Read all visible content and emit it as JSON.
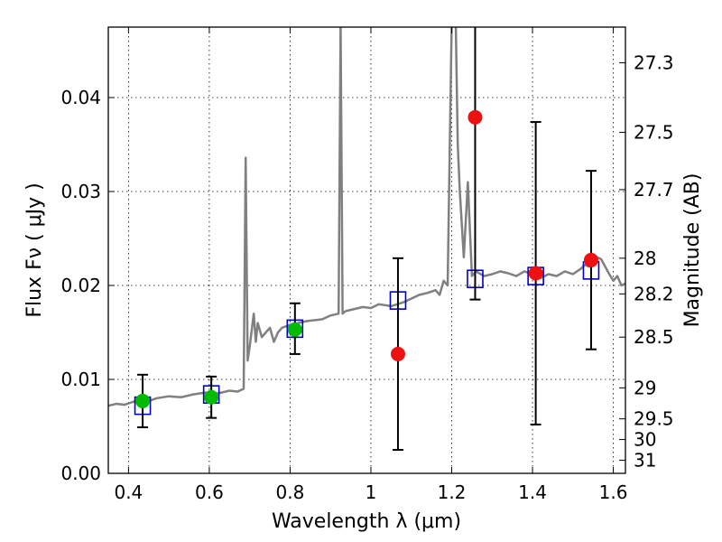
{
  "chart_data": {
    "type": "scatter",
    "xlabel": "Wavelength  λ (μm)",
    "ylabel": "Flux  Fν ( μJy )",
    "ylabel_right": "Magnitude (AB)",
    "xlim": [
      0.35,
      1.63
    ],
    "ylim": [
      0.0,
      0.0475
    ],
    "x_ticks": [
      0.4,
      0.6,
      0.8,
      1.0,
      1.2,
      1.4,
      1.6
    ],
    "x_tick_labels": [
      "0.4",
      "0.6",
      "0.8",
      "1",
      "1.2",
      "1.4",
      "1.6"
    ],
    "y_ticks": [
      0.0,
      0.01,
      0.02,
      0.03,
      0.04
    ],
    "y_tick_labels": [
      "0.00",
      "0.01",
      "0.02",
      "0.03",
      "0.04"
    ],
    "right_ticks": [
      {
        "label": "27.3",
        "flux": 0.0437
      },
      {
        "label": "27.5",
        "flux": 0.0363
      },
      {
        "label": "27.7",
        "flux": 0.0302
      },
      {
        "label": "28",
        "flux": 0.0229
      },
      {
        "label": "28.2",
        "flux": 0.0191
      },
      {
        "label": "28.5",
        "flux": 0.0145
      },
      {
        "label": "29",
        "flux": 0.0091
      },
      {
        "label": "29.5",
        "flux": 0.0058
      },
      {
        "label": "30",
        "flux": 0.0036
      },
      {
        "label": "31",
        "flux": 0.0014
      }
    ],
    "grid": true,
    "series": [
      {
        "style": "line",
        "color": "#808080",
        "x": [
          0.35,
          0.37,
          0.39,
          0.41,
          0.43,
          0.45,
          0.47,
          0.5,
          0.53,
          0.56,
          0.59,
          0.62,
          0.65,
          0.67,
          0.685,
          0.69,
          0.695,
          0.7,
          0.71,
          0.715,
          0.72,
          0.73,
          0.74,
          0.75,
          0.76,
          0.77,
          0.78,
          0.8,
          0.82,
          0.84,
          0.86,
          0.88,
          0.9,
          0.92,
          0.925,
          0.93,
          0.935,
          0.94,
          0.96,
          0.98,
          1.0,
          1.02,
          1.05,
          1.08,
          1.1,
          1.12,
          1.14,
          1.16,
          1.17,
          1.18,
          1.19,
          1.2,
          1.21,
          1.215,
          1.22,
          1.23,
          1.24,
          1.25,
          1.26,
          1.28,
          1.3,
          1.32,
          1.34,
          1.36,
          1.38,
          1.4,
          1.42,
          1.44,
          1.46,
          1.48,
          1.5,
          1.52,
          1.53,
          1.54,
          1.55,
          1.56,
          1.57,
          1.58,
          1.59,
          1.6,
          1.61,
          1.62,
          1.63
        ],
        "y": [
          0.0072,
          0.0074,
          0.0073,
          0.0076,
          0.0078,
          0.0077,
          0.008,
          0.0082,
          0.0081,
          0.0084,
          0.0086,
          0.0085,
          0.0088,
          0.0087,
          0.009,
          0.0336,
          0.012,
          0.0135,
          0.017,
          0.014,
          0.016,
          0.0145,
          0.015,
          0.0155,
          0.014,
          0.015,
          0.0155,
          0.0158,
          0.016,
          0.0162,
          0.0163,
          0.0164,
          0.0168,
          0.017,
          0.048,
          0.017,
          0.0172,
          0.0173,
          0.0175,
          0.0177,
          0.0176,
          0.018,
          0.0178,
          0.0182,
          0.0186,
          0.019,
          0.0192,
          0.0195,
          0.019,
          0.0205,
          0.02,
          0.048,
          0.048,
          0.035,
          0.03,
          0.023,
          0.031,
          0.021,
          0.0215,
          0.021,
          0.0212,
          0.0215,
          0.0213,
          0.021,
          0.0215,
          0.0212,
          0.0208,
          0.0212,
          0.021,
          0.0215,
          0.0212,
          0.0218,
          0.0222,
          0.022,
          0.0225,
          0.023,
          0.0228,
          0.022,
          0.0212,
          0.0205,
          0.021,
          0.02,
          0.0202
        ]
      },
      {
        "style": "squares",
        "color": "#0000cc",
        "x": [
          0.435,
          0.605,
          0.812,
          1.067,
          1.258,
          1.408,
          1.545
        ],
        "y": [
          0.0072,
          0.0084,
          0.0154,
          0.0184,
          0.0207,
          0.021,
          0.0216
        ]
      },
      {
        "style": "circles",
        "color": "#00bb00",
        "x": [
          0.435,
          0.605,
          0.812
        ],
        "y": [
          0.0077,
          0.0081,
          0.0153
        ]
      },
      {
        "style": "circles",
        "color": "#ee1111",
        "x": [
          1.067,
          1.258,
          1.408,
          1.545
        ],
        "y": [
          0.0127,
          0.0379,
          0.0213,
          0.0227
        ]
      },
      {
        "style": "errorbars",
        "color": "#000000",
        "x": [
          0.435,
          0.605,
          0.812,
          1.067,
          1.258,
          1.408,
          1.545
        ],
        "low": [
          0.0049,
          0.0059,
          0.0127,
          0.0025,
          0.0185,
          0.0052,
          0.0132
        ],
        "high": [
          0.0105,
          0.0103,
          0.0181,
          0.0229,
          0.048,
          0.0374,
          0.0322
        ]
      }
    ]
  }
}
